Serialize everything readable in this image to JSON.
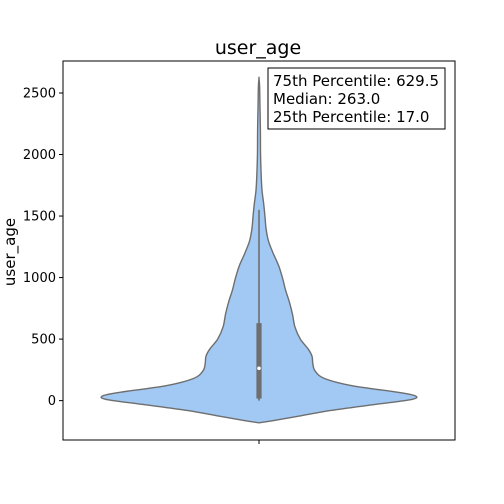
{
  "chart_data": {
    "type": "violin",
    "title": "user_age",
    "xlabel": "",
    "ylabel": "user_age",
    "ylim": [
      -320,
      2760
    ],
    "yticks": [
      0,
      500,
      1000,
      1500,
      2000,
      2500
    ],
    "xticks": [
      ""
    ],
    "grid": false,
    "legend": "none",
    "colors": {
      "fill": "#a1c9f4",
      "edge": "#6e6e6e",
      "box": "#6e6e6e",
      "median_dot": "#ffffff"
    },
    "violin_profile": [
      {
        "y": -180,
        "w": 0.0
      },
      {
        "y": -165,
        "w": 0.08
      },
      {
        "y": -130,
        "w": 0.24
      },
      {
        "y": -80,
        "w": 0.46
      },
      {
        "y": -30,
        "w": 0.75
      },
      {
        "y": 10,
        "w": 0.98
      },
      {
        "y": 40,
        "w": 1.0
      },
      {
        "y": 70,
        "w": 0.88
      },
      {
        "y": 120,
        "w": 0.6
      },
      {
        "y": 180,
        "w": 0.42
      },
      {
        "y": 240,
        "w": 0.36
      },
      {
        "y": 300,
        "w": 0.345
      },
      {
        "y": 360,
        "w": 0.34
      },
      {
        "y": 420,
        "w": 0.315
      },
      {
        "y": 500,
        "w": 0.265
      },
      {
        "y": 600,
        "w": 0.23
      },
      {
        "y": 700,
        "w": 0.215
      },
      {
        "y": 800,
        "w": 0.195
      },
      {
        "y": 900,
        "w": 0.17
      },
      {
        "y": 1000,
        "w": 0.15
      },
      {
        "y": 1100,
        "w": 0.125
      },
      {
        "y": 1200,
        "w": 0.09
      },
      {
        "y": 1300,
        "w": 0.06
      },
      {
        "y": 1400,
        "w": 0.045
      },
      {
        "y": 1500,
        "w": 0.038
      },
      {
        "y": 1600,
        "w": 0.03
      },
      {
        "y": 1700,
        "w": 0.02
      },
      {
        "y": 1800,
        "w": 0.015
      },
      {
        "y": 2000,
        "w": 0.01
      },
      {
        "y": 2200,
        "w": 0.009
      },
      {
        "y": 2400,
        "w": 0.006
      },
      {
        "y": 2550,
        "w": 0.004
      },
      {
        "y": 2620,
        "w": 0.0
      }
    ],
    "box": {
      "q1": 17.0,
      "median": 263.0,
      "q3": 629.5,
      "whisker_low": 0,
      "whisker_high": 1550
    },
    "annotation_lines": [
      "75th Percentile: 629.5",
      "Median: 263.0",
      "25th Percentile: 17.0"
    ]
  }
}
